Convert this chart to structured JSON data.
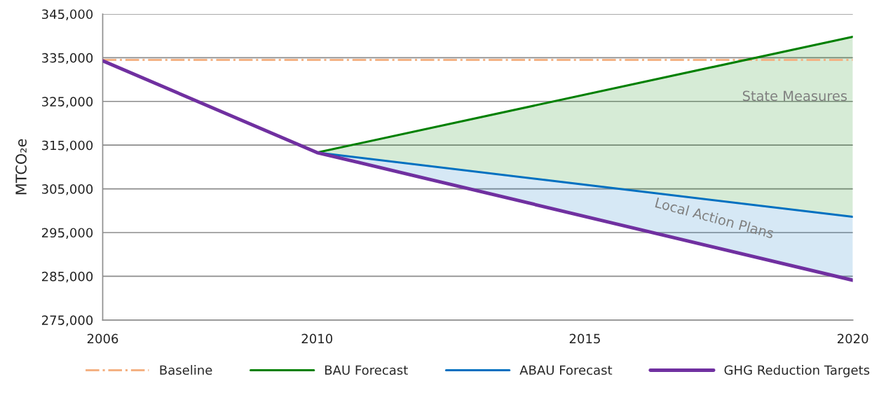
{
  "chart_data": {
    "type": "line",
    "ylabel": "MTCO₂e",
    "xlim": [
      2006,
      2020
    ],
    "xticks": [
      2006,
      2010,
      2015,
      2020
    ],
    "ylim": [
      275000,
      345000
    ],
    "yticks": [
      {
        "value": 275000,
        "label": "275,000"
      },
      {
        "value": 285000,
        "label": "285,000"
      },
      {
        "value": 295000,
        "label": "295,000"
      },
      {
        "value": 305000,
        "label": "305,000"
      },
      {
        "value": 315000,
        "label": "315,000"
      },
      {
        "value": 325000,
        "label": "325,000"
      },
      {
        "value": 335000,
        "label": "335,000"
      },
      {
        "value": 345000,
        "label": "345,000"
      }
    ],
    "grid": "y",
    "legend": "bottom",
    "marker": "none",
    "series": [
      {
        "name": "Baseline",
        "color": "#f4b183",
        "line_style": "dashdot",
        "x": [
          2006,
          2020
        ],
        "values": [
          334500,
          334500
        ]
      },
      {
        "name": "BAU Forecast",
        "color": "#008000",
        "line_style": "solid",
        "x": [
          2010,
          2020
        ],
        "values": [
          313300,
          339800
        ],
        "lower": [
          313300,
          298600
        ],
        "upper": [
          313300,
          339800
        ]
      },
      {
        "name": "ABAU Forecast",
        "color": "#0070c0",
        "line_style": "solid",
        "x": [
          2010,
          2020
        ],
        "values": [
          313300,
          298600
        ],
        "lower": [
          313300,
          284100
        ],
        "upper": [
          313300,
          298600
        ]
      },
      {
        "name": "GHG Reduction Targets",
        "color": "#7030a0",
        "line_style": "solid",
        "x": [
          2006,
          2010,
          2020
        ],
        "values": [
          334300,
          313300,
          284100
        ]
      }
    ],
    "annotations": [
      {
        "text": "State Measures",
        "x": 2020,
        "y": 326000
      },
      "Local Action Plans"
    ]
  }
}
